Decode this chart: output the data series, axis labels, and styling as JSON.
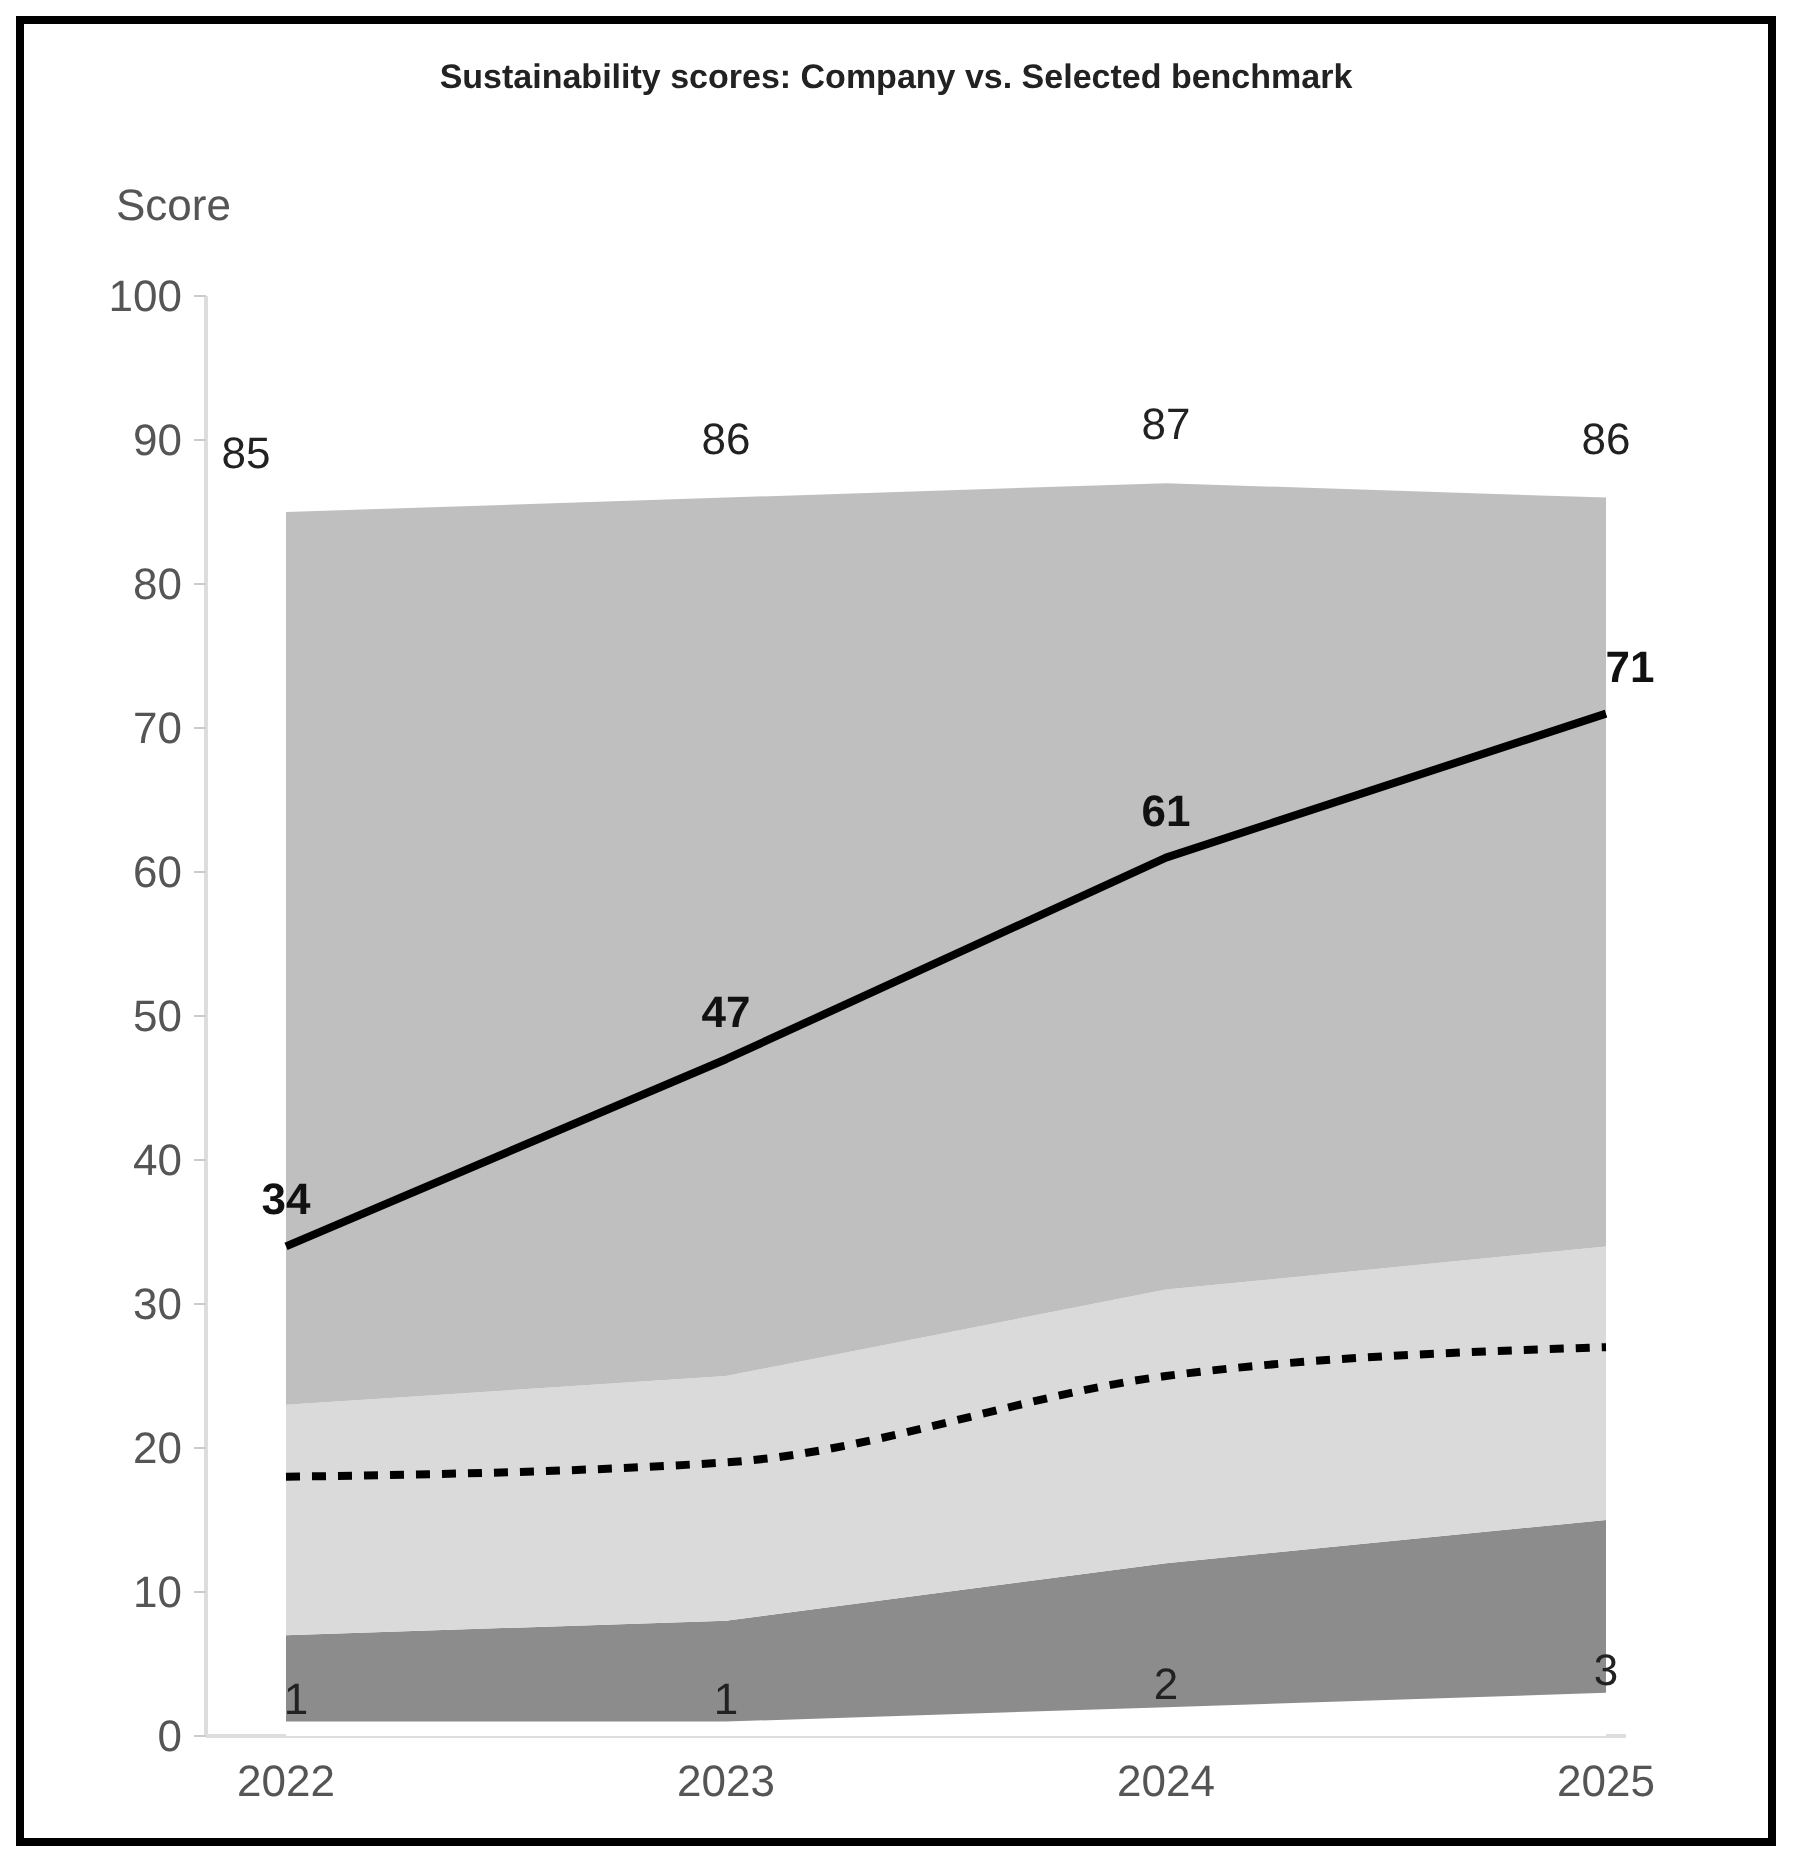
{
  "chart_data": {
    "type": "area",
    "title": "Sustainability scores: Company vs. Selected benchmark",
    "ylabel": "Score",
    "categories": [
      "2022",
      "2023",
      "2024",
      "2025"
    ],
    "stacked": true,
    "ylim": [
      0,
      100
    ],
    "yticks": [
      0,
      10,
      20,
      30,
      40,
      50,
      60,
      70,
      80,
      90,
      100
    ],
    "grid": false,
    "series": [
      {
        "color": "#ffffff",
        "values": [
          1,
          1,
          2,
          3
        ],
        "value_labels": [
          "1",
          "1",
          "2",
          "3"
        ]
      },
      {
        "color": "#8c8c8c",
        "values": [
          6,
          7,
          10,
          12
        ]
      },
      {
        "color": "#dadada",
        "values": [
          16,
          17,
          19,
          19
        ]
      },
      {
        "color": "#bfbfbf",
        "values": [
          62,
          61,
          56,
          52
        ]
      },
      {
        "type": "line",
        "color": "#000000",
        "values": [
          18,
          19,
          25,
          27
        ],
        "line_style": "dashed"
      },
      {
        "type": "line",
        "color": "#000000",
        "values": [
          34,
          47,
          61,
          71
        ],
        "line_style": "solid",
        "value_labels": [
          "34",
          "47",
          "61",
          "71"
        ]
      }
    ],
    "totals": [
      "85",
      "86",
      "87",
      "86"
    ]
  }
}
